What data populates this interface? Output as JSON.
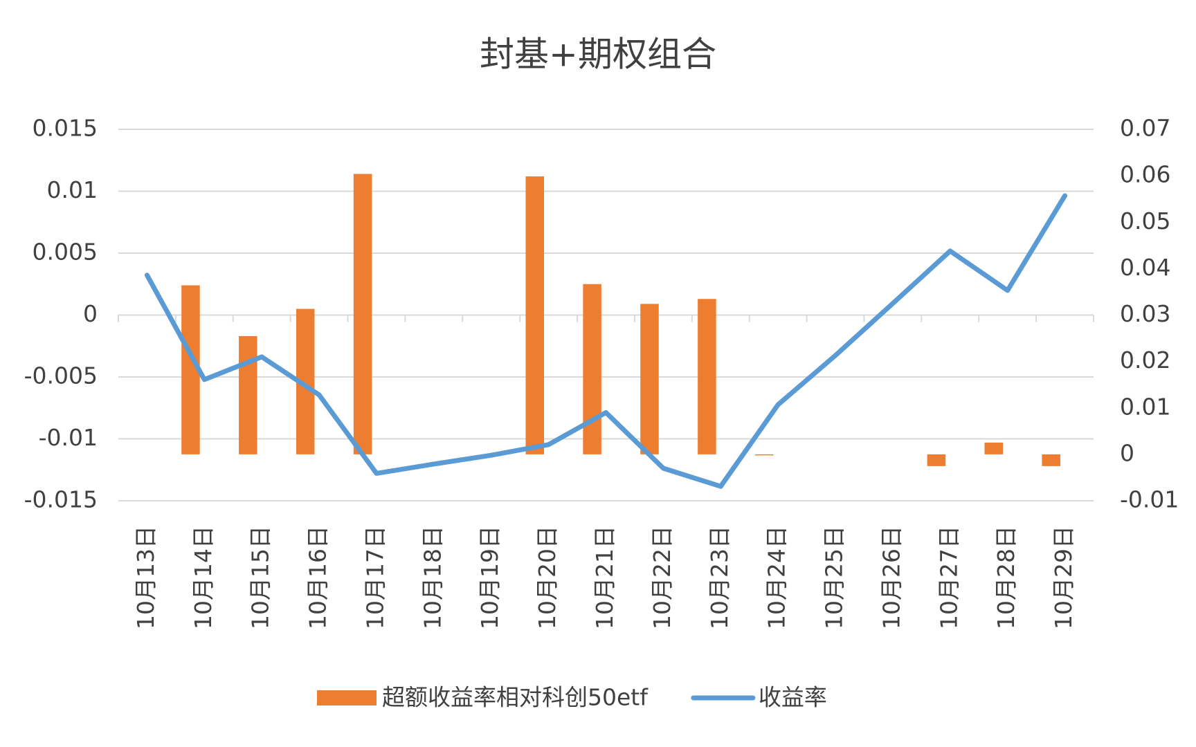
{
  "chart_data": {
    "type": "bar-line",
    "title": "封基+期权组合",
    "categories": [
      "10月13日",
      "10月14日",
      "10月15日",
      "10月16日",
      "10月17日",
      "10月18日",
      "10月19日",
      "10月20日",
      "10月21日",
      "10月22日",
      "10月23日",
      "10月24日",
      "10月25日",
      "10月26日",
      "10月27日",
      "10月28日",
      "10月29日"
    ],
    "series": [
      {
        "name": "超额收益率相对科创50etf",
        "type": "bar",
        "color": "#ed7d31",
        "values": [
          null,
          0.0024,
          -0.0017,
          0.0005,
          0.0114,
          null,
          null,
          0.0112,
          0.0025,
          0.0009,
          0.0013,
          -0.0113,
          null,
          null,
          -0.0122,
          -0.0103,
          -0.0122
        ]
      },
      {
        "name": "收益率",
        "type": "line",
        "color": "#5b9bd5",
        "axis": "y2",
        "values": [
          0.0386,
          0.0161,
          0.021,
          0.0128,
          -0.0041,
          -0.0021,
          -0.0002,
          0.0021,
          0.009,
          -0.003,
          -0.0069,
          0.0107,
          0.0213,
          0.0325,
          0.0438,
          0.0353,
          0.0557
        ]
      }
    ],
    "ylim": [
      -0.015,
      0.015
    ],
    "yticks": [
      -0.015,
      -0.01,
      -0.005,
      0,
      0.005,
      0.01,
      0.015
    ],
    "y2lim": [
      -0.01,
      0.07
    ],
    "y2ticks": [
      -0.01,
      0,
      0.01,
      0.02,
      0.03,
      0.04,
      0.05,
      0.06,
      0.07
    ],
    "grid": true,
    "legend": "bottom"
  }
}
